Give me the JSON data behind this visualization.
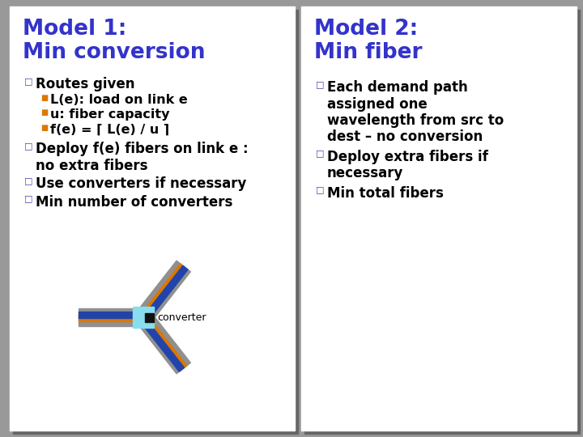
{
  "bg_color": "#ffffff",
  "outer_bg": "#999999",
  "panel1_title_line1": "Model 1:",
  "panel1_title_line2": "Min conversion",
  "panel2_title_line1": "Model 2:",
  "panel2_title_line2": "Min fiber",
  "title_color": "#3333cc",
  "title_fontsize": 19,
  "bullet_color": "#4444aa",
  "body_color": "#000000",
  "body_fontsize": 12,
  "sub_bullet_color": "#dd7700",
  "panel1_bullet1": "Routes given",
  "panel1_sub1": "L(e): load on link e",
  "panel1_sub2": "u: fiber capacity",
  "panel1_sub3": "f(e) = ⌈ L(e) / u ⌉",
  "panel1_bullet2a": "Deploy f(e) fibers on link e :",
  "panel1_bullet2b": "no extra fibers",
  "panel1_bullet3": "Use converters if necessary",
  "panel1_bullet4": "Min number of converters",
  "panel2_bullet1a": "Each demand path",
  "panel2_bullet1b": "assigned one",
  "panel2_bullet1c": "wavelength from src to",
  "panel2_bullet1d": "dest – no conversion",
  "panel2_bullet2a": "Deploy extra fibers if",
  "panel2_bullet2b": "necessary",
  "panel2_bullet3": "Min total fibers",
  "converter_label": "converter",
  "gray_cable": "#909090",
  "orange_stripe": "#dd7700",
  "blue_stripe": "#2222aa",
  "cyan_junction": "#88ddee"
}
